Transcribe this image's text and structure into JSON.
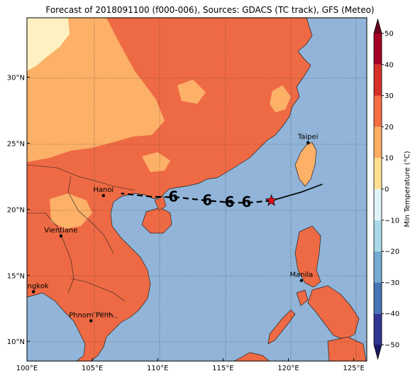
{
  "title": "Forecast of 2018091100 (f000-006), Sources: GDACS (TC track), GFS (Meteo)",
  "map": {
    "lon_ticks": [
      "100°E",
      "105°E",
      "110°E",
      "115°E",
      "120°E",
      "125°E"
    ],
    "lat_ticks": [
      "10°N",
      "15°N",
      "20°N",
      "25°N",
      "30°N"
    ],
    "lon_range": [
      100,
      126
    ],
    "lat_range": [
      8.5,
      34.5
    ],
    "cities": [
      {
        "name": "Taipei",
        "lon": 121.5,
        "lat": 25.05
      },
      {
        "name": "Hanoi",
        "lon": 105.85,
        "lat": 21.03
      },
      {
        "name": "Vientiane",
        "lon": 102.6,
        "lat": 17.97
      },
      {
        "name": "Manila",
        "lon": 121.0,
        "lat": 14.6
      },
      {
        "name": "Bangkok",
        "lon": 100.5,
        "lat": 13.75
      },
      {
        "name": "Phnom Penh",
        "lon": 104.9,
        "lat": 11.55
      }
    ],
    "track_past": [
      [
        122.6,
        21.9
      ],
      [
        121.0,
        21.3
      ],
      [
        118.7,
        20.65
      ]
    ],
    "track_forecast": [
      [
        118.7,
        20.65
      ],
      [
        117.0,
        20.5
      ],
      [
        115.8,
        20.5
      ],
      [
        113.8,
        20.65
      ],
      [
        111.5,
        20.9
      ],
      [
        109.5,
        20.95
      ],
      [
        107.2,
        21.2
      ]
    ],
    "storm_position": [
      118.7,
      20.65
    ],
    "storm_symbols": [
      [
        116.8,
        20.55
      ],
      [
        115.5,
        20.55
      ],
      [
        113.8,
        20.7
      ],
      [
        111.2,
        20.95
      ]
    ]
  },
  "colorbar": {
    "label": "Min Temperature (°C)",
    "ticks": [
      "50",
      "40",
      "30",
      "20",
      "10",
      "0",
      "−10",
      "−20",
      "−30",
      "−40",
      "−50"
    ],
    "colors": [
      "#313695",
      "#4575b4",
      "#74add1",
      "#abd9e9",
      "#e0f3f8",
      "#fee090",
      "#fdae61",
      "#f46d43",
      "#d73027",
      "#a50026"
    ],
    "under_color": "#1a1a60",
    "over_color": "#67001f"
  },
  "colors": {
    "sea": "#91b4d8",
    "land_warm": "#ee6a44",
    "land_mild": "#fcb068",
    "land_cool": "#fef0c0"
  }
}
